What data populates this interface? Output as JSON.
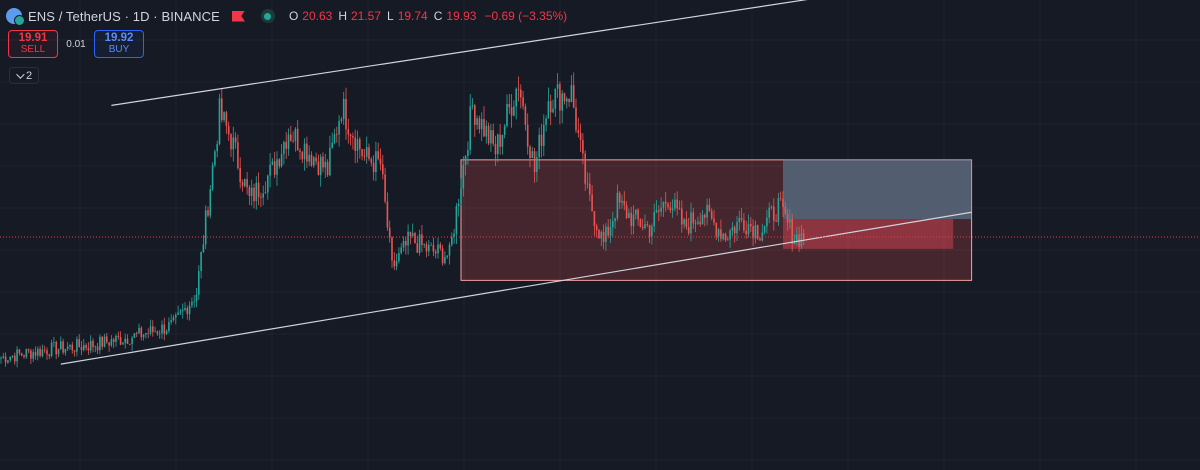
{
  "header": {
    "symbol": "ENS / TetherUS · 1D · BINANCE",
    "ohlc": {
      "o_label": "O",
      "o_value": "20.63",
      "h_label": "H",
      "h_value": "21.57",
      "l_label": "L",
      "l_value": "19.74",
      "c_label": "C",
      "c_value": "19.93",
      "change": "−0.69 (−3.35%)"
    },
    "icons": {
      "symbol": "coin-logo-icon",
      "flag": "flag-icon",
      "status": "market-open-dot-icon"
    }
  },
  "trade": {
    "sell_price": "19.91",
    "sell_label": "SELL",
    "spread": "0.01",
    "buy_price": "19.92",
    "buy_label": "BUY"
  },
  "indicators": {
    "count": "2"
  },
  "colors": {
    "background": "#161a25",
    "up": "#26a69a",
    "down": "#ef5350",
    "grid": "#1f2330",
    "trendline": "#d1d4dc",
    "current_price_line": "#f23645",
    "zone_fill": "#ef5350",
    "zone_border": "#f7a1a1",
    "target_fill": "#5d8ba8",
    "stop_fill": "#c74152"
  },
  "chart_data": {
    "type": "candlestick",
    "symbol": "ENS / TetherUS",
    "interval": "1D",
    "exchange": "BINANCE",
    "current_price": 19.93,
    "price_range_visible": [
      5.6,
      34.5
    ],
    "candle_count": 350,
    "anchors": [
      [
        0,
        12.5
      ],
      [
        20,
        13.0
      ],
      [
        40,
        13.3
      ],
      [
        60,
        13.9
      ],
      [
        75,
        14.5
      ],
      [
        85,
        16.5
      ],
      [
        90,
        22.0
      ],
      [
        95,
        27.5
      ],
      [
        100,
        26.0
      ],
      [
        108,
        22.2
      ],
      [
        118,
        24.0
      ],
      [
        125,
        26.5
      ],
      [
        135,
        25.0
      ],
      [
        142,
        24.0
      ],
      [
        148,
        28.0
      ],
      [
        158,
        24.8
      ],
      [
        165,
        24.4
      ],
      [
        170,
        18.0
      ],
      [
        178,
        19.8
      ],
      [
        186,
        19.1
      ],
      [
        195,
        18.8
      ],
      [
        205,
        28.0
      ],
      [
        215,
        25.2
      ],
      [
        225,
        29.5
      ],
      [
        232,
        24.0
      ],
      [
        238,
        28.5
      ],
      [
        248,
        28.8
      ],
      [
        255,
        22.5
      ],
      [
        262,
        19.5
      ],
      [
        268,
        22.0
      ],
      [
        275,
        21.0
      ],
      [
        282,
        20.5
      ],
      [
        290,
        22.4
      ],
      [
        297,
        20.5
      ],
      [
        305,
        21.5
      ],
      [
        315,
        20.0
      ],
      [
        322,
        21.0
      ],
      [
        330,
        20.3
      ],
      [
        338,
        21.8
      ],
      [
        345,
        19.9
      ]
    ],
    "trendlines": [
      {
        "name": "channel-upper",
        "from": [
          48,
          28.02
        ],
        "to": [
          415,
          35.92
        ]
      },
      {
        "name": "channel-lower",
        "from": [
          26,
          12.11
        ],
        "to": [
          422,
          21.45
        ]
      },
      {
        "name": "channel-top-inner",
        "from": [
          0,
          0
        ],
        "to": [
          0,
          0
        ]
      }
    ],
    "zones": [
      {
        "name": "range-box",
        "x0": 200,
        "x1": 422,
        "y_low": 17.26,
        "y_high": 24.67
      },
      {
        "name": "position-target",
        "x0": 340,
        "x1": 422,
        "y_low": 21.03,
        "y_high": 24.67
      },
      {
        "name": "position-stop",
        "x0": 340,
        "x1": 414,
        "y_low": 19.2,
        "y_high": 21.03
      }
    ]
  }
}
